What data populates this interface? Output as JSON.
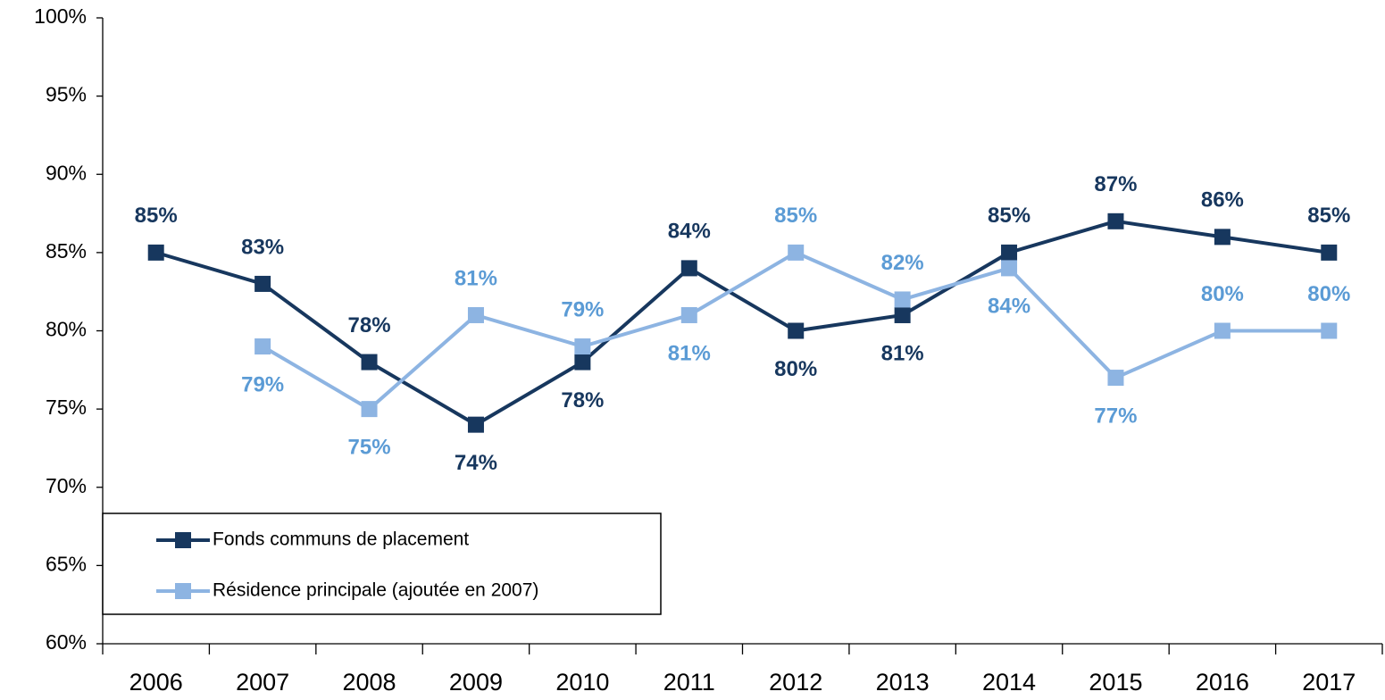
{
  "chart_data": {
    "type": "line",
    "categories": [
      "2006",
      "2007",
      "2008",
      "2009",
      "2010",
      "2011",
      "2012",
      "2013",
      "2014",
      "2015",
      "2016",
      "2017"
    ],
    "series": [
      {
        "name": "Fonds communs de placement",
        "color": "#17375e",
        "values": [
          85,
          83,
          78,
          74,
          78,
          84,
          80,
          81,
          85,
          87,
          86,
          85
        ],
        "value_labels": [
          "85%",
          "83%",
          "78%",
          "74%",
          "78%",
          "84%",
          "80%",
          "81%",
          "85%",
          "87%",
          "86%",
          "85%"
        ]
      },
      {
        "name": "Résidence principale (ajoutée en 2007)",
        "color": "#8db4e2",
        "values": [
          null,
          79,
          75,
          81,
          79,
          81,
          85,
          82,
          84,
          77,
          80,
          80
        ],
        "value_labels": [
          null,
          "79%",
          "75%",
          "81%",
          "79%",
          "81%",
          "85%",
          "82%",
          "84%",
          "77%",
          "80%",
          "80%"
        ]
      }
    ],
    "ylim": [
      60,
      100
    ],
    "yticks": [
      {
        "value": 60,
        "label": "60%"
      },
      {
        "value": 65,
        "label": "65%"
      },
      {
        "value": 70,
        "label": "70%"
      },
      {
        "value": 75,
        "label": "75%"
      },
      {
        "value": 80,
        "label": "80%"
      },
      {
        "value": 85,
        "label": "85%"
      },
      {
        "value": 90,
        "label": "90%"
      },
      {
        "value": 95,
        "label": "95%"
      },
      {
        "value": 100,
        "label": "100%"
      }
    ],
    "grid": false,
    "legend": "lower left"
  }
}
